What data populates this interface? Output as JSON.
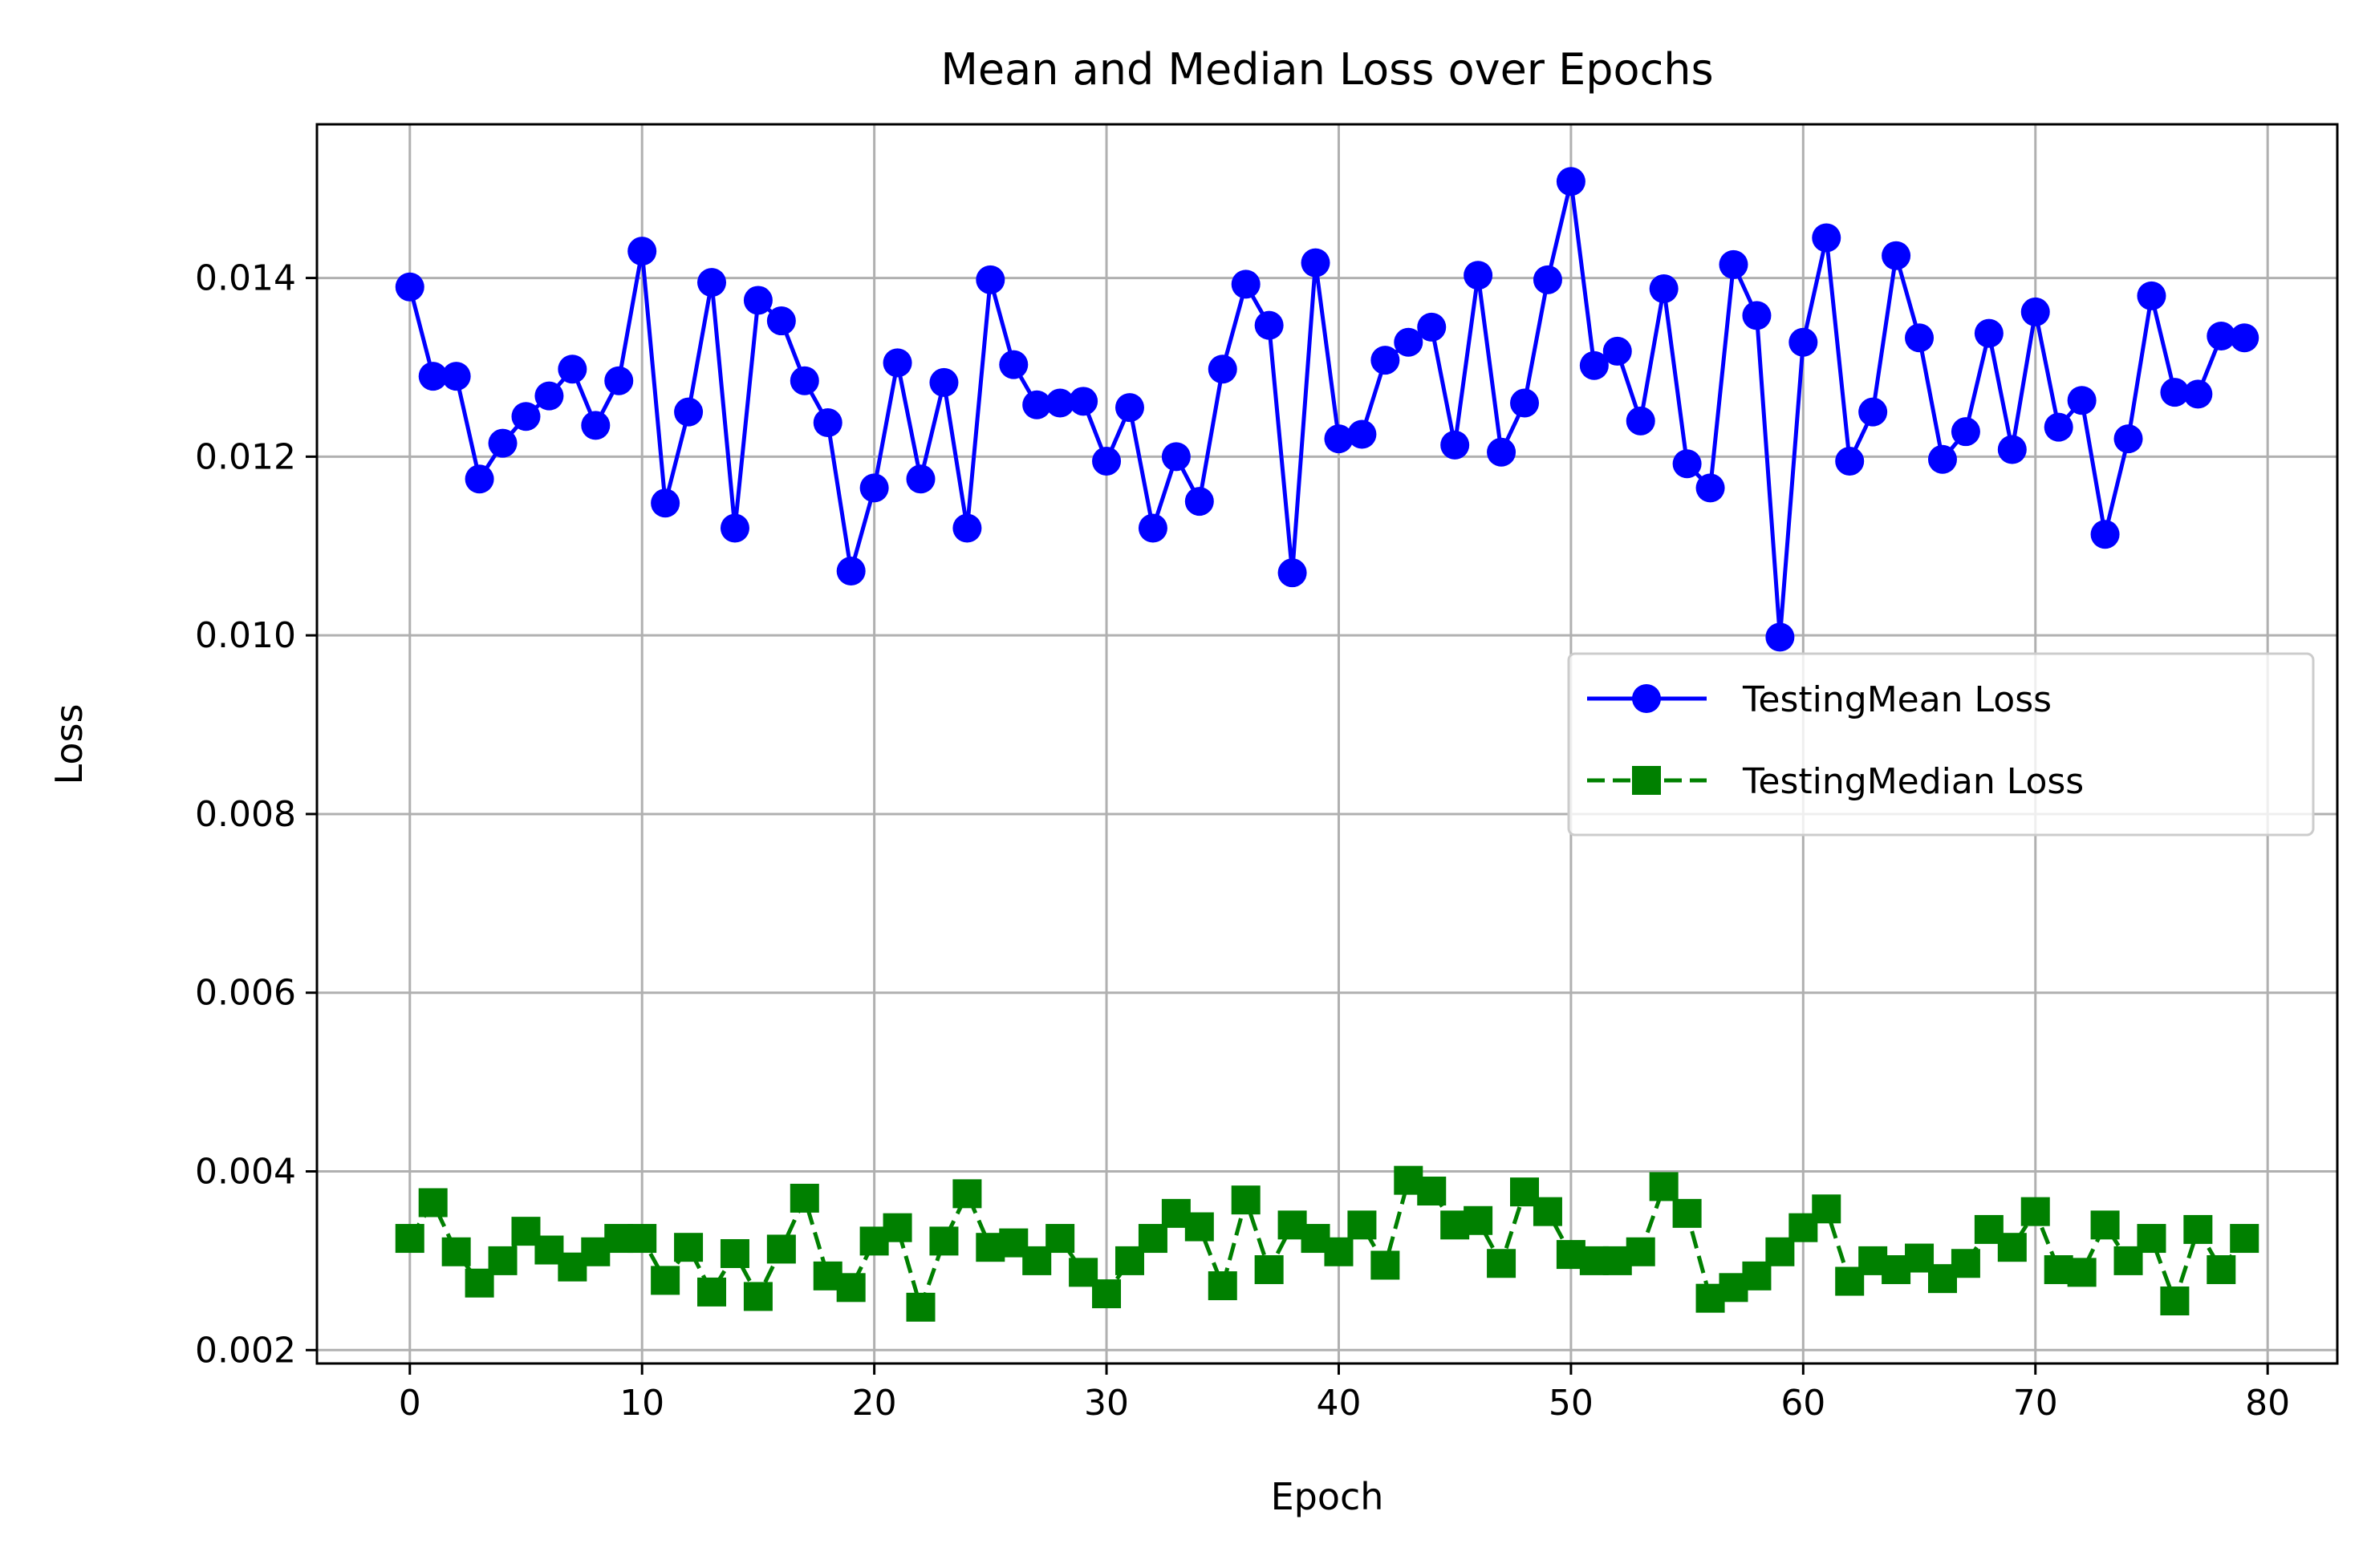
{
  "chart_data": {
    "type": "line",
    "title": "Mean and Median Loss over Epochs",
    "xlabel": "Epoch",
    "ylabel": "Loss",
    "xlim": [
      -4,
      83
    ],
    "ylim": [
      0.00185,
      0.01572
    ],
    "xticks": [
      0,
      10,
      20,
      30,
      40,
      50,
      60,
      70,
      80
    ],
    "xtick_labels": [
      "0",
      "10",
      "20",
      "30",
      "40",
      "50",
      "60",
      "70",
      "80"
    ],
    "yticks": [
      0.002,
      0.004,
      0.006,
      0.008,
      0.01,
      0.012,
      0.014
    ],
    "ytick_labels": [
      "0.002",
      "0.004",
      "0.006",
      "0.008",
      "0.010",
      "0.012",
      "0.014"
    ],
    "grid": true,
    "legend_position": "center-right",
    "x": [
      0,
      1,
      2,
      3,
      4,
      5,
      6,
      7,
      8,
      9,
      10,
      11,
      12,
      13,
      14,
      15,
      16,
      17,
      18,
      19,
      20,
      21,
      22,
      23,
      24,
      25,
      26,
      27,
      28,
      29,
      30,
      31,
      32,
      33,
      34,
      35,
      36,
      37,
      38,
      39,
      40,
      41,
      42,
      43,
      44,
      45,
      46,
      47,
      48,
      49,
      50,
      51,
      52,
      53,
      54,
      55,
      56,
      57,
      58,
      59,
      60,
      61,
      62,
      63,
      64,
      65,
      66,
      67,
      68,
      69,
      70,
      71,
      72,
      73,
      74,
      75,
      76,
      77,
      78,
      79
    ],
    "series": [
      {
        "name": "TestingMean Loss",
        "color": "#0000ff",
        "marker": "circle",
        "line_style": "solid",
        "values": [
          0.0139,
          0.0129,
          0.0129,
          0.01175,
          0.01215,
          0.01245,
          0.01268,
          0.01298,
          0.01235,
          0.01285,
          0.0143,
          0.01148,
          0.0125,
          0.01395,
          0.0112,
          0.01375,
          0.01352,
          0.01285,
          0.01238,
          0.01072,
          0.01165,
          0.01305,
          0.01175,
          0.01283,
          0.0112,
          0.01398,
          0.01303,
          0.01258,
          0.0126,
          0.01262,
          0.01195,
          0.01255,
          0.0112,
          0.012,
          0.0115,
          0.01298,
          0.01393,
          0.01347,
          0.0107,
          0.01417,
          0.0122,
          0.01225,
          0.01308,
          0.01328,
          0.01345,
          0.01213,
          0.01403,
          0.01205,
          0.0126,
          0.01398,
          0.01508,
          0.01302,
          0.01318,
          0.0124,
          0.01388,
          0.01192,
          0.01165,
          0.01415,
          0.01358,
          0.00998,
          0.01328,
          0.01445,
          0.01195,
          0.0125,
          0.01425,
          0.01333,
          0.01197,
          0.01228,
          0.01338,
          0.01208,
          0.01362,
          0.01233,
          0.01263,
          0.01113,
          0.0122,
          0.0138,
          0.01272,
          0.0127,
          0.01335,
          0.01333
        ]
      },
      {
        "name": "TestingMedian Loss",
        "color": "#008000",
        "marker": "square",
        "line_style": "dashed",
        "values": [
          0.00325,
          0.00365,
          0.0031,
          0.00275,
          0.003,
          0.00333,
          0.00312,
          0.00293,
          0.0031,
          0.00325,
          0.00325,
          0.00278,
          0.00315,
          0.00265,
          0.00308,
          0.0026,
          0.00313,
          0.0037,
          0.00283,
          0.0027,
          0.00322,
          0.00337,
          0.00248,
          0.00322,
          0.00375,
          0.00315,
          0.0032,
          0.003,
          0.00325,
          0.00287,
          0.00263,
          0.003,
          0.00325,
          0.00353,
          0.00338,
          0.00272,
          0.00368,
          0.0029,
          0.0034,
          0.00325,
          0.0031,
          0.0034,
          0.00295,
          0.0039,
          0.00378,
          0.0034,
          0.00345,
          0.00297,
          0.00377,
          0.00355,
          0.00307,
          0.003,
          0.003,
          0.0031,
          0.00383,
          0.00353,
          0.00258,
          0.0027,
          0.00283,
          0.0031,
          0.00337,
          0.00358,
          0.00277,
          0.003,
          0.0029,
          0.00303,
          0.0028,
          0.00297,
          0.00335,
          0.00315,
          0.00355,
          0.0029,
          0.00287,
          0.0034,
          0.003,
          0.00325,
          0.00255,
          0.00335,
          0.0029,
          0.00325
        ]
      }
    ]
  }
}
